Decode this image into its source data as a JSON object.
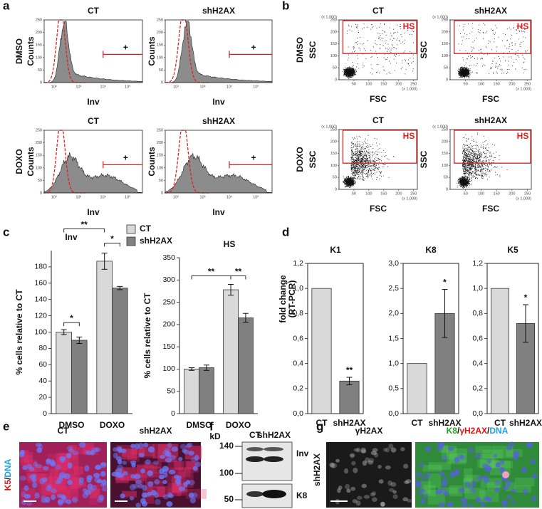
{
  "panel_a": {
    "label": "a",
    "yticks": [
      0,
      50,
      100,
      150,
      200,
      250
    ],
    "xticks": [
      "10²",
      "10³",
      "10⁴",
      "10⁵"
    ],
    "plots": [
      {
        "title": "CT",
        "condition": "DMSO",
        "ylabel": "Counts",
        "xlabel": "Inv",
        "gate": "+"
      },
      {
        "title": "shH2AX",
        "ylabel": "Counts",
        "xlabel": "Inv",
        "gate": "+"
      },
      {
        "title": "CT",
        "condition": "DOXO",
        "ylabel": "Counts",
        "xlabel": "Inv",
        "gate": "+"
      },
      {
        "title": "shH2AX",
        "ylabel": "Counts",
        "xlabel": "Inv",
        "gate": "+"
      }
    ]
  },
  "panel_b": {
    "label": "b",
    "yticks": [
      0,
      50,
      100,
      150,
      200,
      250
    ],
    "xticks": [
      50,
      100,
      150,
      200,
      250
    ],
    "scale": "(x 1,000)",
    "plots": [
      {
        "title": "CT",
        "condition": "DMSO",
        "ylabel": "SSC",
        "xlabel": "FSC",
        "gate": "HS"
      },
      {
        "title": "shH2AX",
        "ylabel": "SSC",
        "xlabel": "FSC",
        "gate": "HS"
      },
      {
        "title": "CT",
        "condition": "DOXO",
        "ylabel": "SSC",
        "xlabel": "FSC",
        "gate": "HS"
      },
      {
        "title": "shH2AX",
        "ylabel": "SSC",
        "xlabel": "FSC",
        "gate": "HS"
      }
    ]
  },
  "panel_c": {
    "label": "c",
    "legend": [
      {
        "name": "CT",
        "color": "#d9d9d9"
      },
      {
        "name": "shH2AX",
        "color": "#808080"
      }
    ],
    "charts": [
      {
        "type": "bar",
        "title": "Inv",
        "ylabel": "% cells relative to CT",
        "categories": [
          "DMSO",
          "DOXO"
        ],
        "series": [
          {
            "values": [
              100,
              187
            ],
            "errors": [
              3,
              10
            ]
          },
          {
            "values": [
              90,
              154
            ],
            "errors": [
              4,
              2
            ]
          }
        ],
        "ylim": [
          0,
          200
        ],
        "yticks": [
          0,
          20,
          40,
          60,
          80,
          100,
          120,
          140,
          160,
          180
        ],
        "significance": [
          "*",
          "**",
          "*"
        ]
      },
      {
        "type": "bar",
        "title": "HS",
        "ylabel": "% cells relative to CT",
        "categories": [
          "DMSO",
          "DOXO"
        ],
        "series": [
          {
            "values": [
              100,
              278
            ],
            "errors": [
              3,
              12
            ]
          },
          {
            "values": [
              103,
              215
            ],
            "errors": [
              6,
              10
            ]
          }
        ],
        "ylim": [
          0,
          350
        ],
        "yticks": [
          0,
          50,
          100,
          150,
          200,
          250,
          300,
          350
        ],
        "significance": [
          "**",
          "**"
        ]
      }
    ]
  },
  "panel_d": {
    "label": "d",
    "ylabel": [
      "fold change",
      "(RT-PCR)"
    ],
    "charts": [
      {
        "type": "bar",
        "title": "K1",
        "categories": [
          "CT",
          "shH2AX"
        ],
        "colors": [
          "#d9d9d9",
          "#808080"
        ],
        "values": [
          1,
          0.26
        ],
        "errors": [
          null,
          0.03
        ],
        "significance": [
          null,
          "**"
        ],
        "ylim": [
          0,
          1.2
        ],
        "yticks": [
          {
            "value": 0,
            "label": "0,0"
          },
          {
            "value": 0.2,
            "label": "0,2"
          },
          {
            "value": 0.4,
            "label": "0,4"
          },
          {
            "value": 0.6,
            "label": "0,6"
          },
          {
            "value": 0.8,
            "label": "0,8"
          },
          {
            "value": 1,
            "label": "1,0"
          },
          {
            "value": 1.2,
            "label": "1,2"
          }
        ]
      },
      {
        "type": "bar",
        "title": "K8",
        "categories": [
          "CT",
          "shH2AX"
        ],
        "colors": [
          "#d9d9d9",
          "#808080"
        ],
        "values": [
          1,
          2.0
        ],
        "errors": [
          null,
          0.48
        ],
        "significance": [
          null,
          "*"
        ],
        "ylim": [
          0,
          3
        ],
        "yticks": [
          {
            "value": 0,
            "label": "0,0"
          },
          {
            "value": 0.5,
            "label": "0,5"
          },
          {
            "value": 1,
            "label": "1,0"
          },
          {
            "value": 1.5,
            "label": "1,5"
          },
          {
            "value": 2,
            "label": "2,0"
          },
          {
            "value": 2.5,
            "label": "2,5"
          },
          {
            "value": 3,
            "label": "3,0"
          }
        ]
      },
      {
        "type": "bar",
        "title": "K5",
        "categories": [
          "CT",
          "shH2AX"
        ],
        "colors": [
          "#d9d9d9",
          "#808080"
        ],
        "values": [
          1,
          0.72
        ],
        "errors": [
          null,
          0.15
        ],
        "significance": [
          null,
          "*"
        ],
        "ylim": [
          0,
          1.2
        ],
        "yticks": [
          {
            "value": 0,
            "label": "0,0"
          },
          {
            "value": 0.2,
            "label": "0,2"
          },
          {
            "value": 0.4,
            "label": "0,4"
          },
          {
            "value": 0.6,
            "label": "0,6"
          },
          {
            "value": 0.8,
            "label": "0,8"
          },
          {
            "value": 1,
            "label": "1,0"
          },
          {
            "value": 1.2,
            "label": "1,2"
          }
        ]
      }
    ]
  },
  "panel_e": {
    "label": "e",
    "titles": [
      "CT",
      "shH2AX"
    ],
    "stain": [
      "K5",
      "/",
      "DNA"
    ]
  },
  "panel_f": {
    "label": "f",
    "unit": "kD",
    "markers": [
      "140",
      "100",
      "50"
    ],
    "lanes": [
      "CT",
      "shH2AX"
    ],
    "bands": [
      "Inv",
      "K8"
    ]
  },
  "panel_g": {
    "label": "g",
    "titles": [
      "γH2AX"
    ],
    "merge": [
      "K8",
      "/",
      "γH2AX",
      "/",
      "DNA"
    ],
    "condition": "shH2AX"
  }
}
